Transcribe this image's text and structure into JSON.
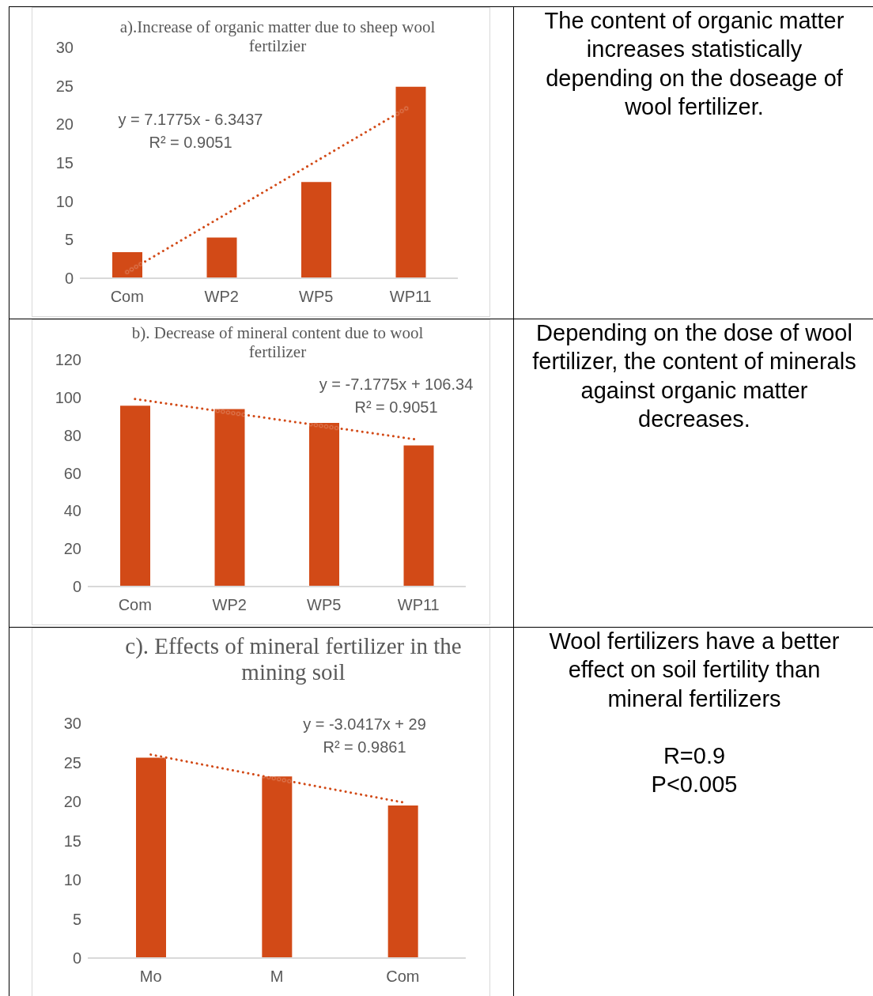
{
  "chart_data": [
    {
      "type": "bar",
      "title": "a).Increase of organic matter due to sheep wool fertilzier",
      "categories": [
        "Com",
        "WP2",
        "WP5",
        "WP11"
      ],
      "series": [
        {
          "type": "bar",
          "color": "#d24a17",
          "values": [
            3.4,
            5.3,
            12.5,
            24.9
          ]
        },
        {
          "type": "line",
          "color": "#d24a17",
          "line_style": "dotted",
          "values": [
            0.8,
            8.0,
            15.2,
            22.4
          ]
        }
      ],
      "ylim": [
        0,
        30
      ],
      "yticks": [
        0,
        5,
        10,
        15,
        20,
        25,
        30
      ],
      "annotations": [
        "y = 7.1775x - 6.3437",
        "R² = 0.9051"
      ]
    },
    {
      "type": "other",
      "annotations": [
        "The content of organic matter increases statistically depending on the doseage of wool fertilizer."
      ]
    },
    {
      "type": "bar",
      "title": "b). Decrease of mineral content due to wool fertilizer",
      "categories": [
        "Com",
        "WP2",
        "WP5",
        "WP11"
      ],
      "series": [
        {
          "type": "bar",
          "color": "#d24a17",
          "values": [
            95.6,
            93.9,
            86.6,
            74.6
          ]
        },
        {
          "type": "line",
          "color": "#d24a17",
          "line_style": "dotted",
          "values": [
            99.2,
            92.0,
            84.8,
            77.6
          ]
        }
      ],
      "ylim": [
        0,
        120
      ],
      "yticks": [
        0,
        20,
        40,
        60,
        80,
        100,
        120
      ],
      "annotations": [
        "y = -7.1775x + 106.34",
        "R² = 0.9051"
      ]
    },
    {
      "type": "other",
      "annotations": [
        "Depending on the dose of wool fertilizer, the content of minerals against organic matter decreases."
      ]
    },
    {
      "type": "bar",
      "title": "c). Effects of mineral fertilizer in the mining soil",
      "categories": [
        "Mo",
        "M",
        "Com"
      ],
      "series": [
        {
          "type": "bar",
          "color": "#d24a17",
          "values": [
            25.6,
            23.2,
            19.5
          ]
        },
        {
          "type": "line",
          "color": "#d24a17",
          "line_style": "dotted",
          "values": [
            26.0,
            22.9,
            19.9
          ]
        }
      ],
      "ylim": [
        0,
        30
      ],
      "yticks": [
        0,
        5,
        10,
        15,
        20,
        25,
        30
      ],
      "annotations": [
        "y = -3.0417x + 29",
        "R² = 0.9861"
      ]
    },
    {
      "type": "other",
      "annotations": [
        "Wool fertilizers have a better effect on soil fertility than mineral fertilizers",
        "R=0.9",
        "P<0.005"
      ]
    }
  ]
}
